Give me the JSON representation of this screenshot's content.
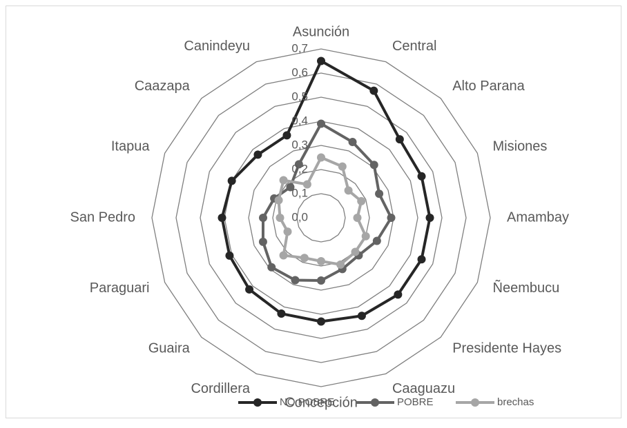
{
  "chart_data": {
    "type": "radar",
    "categories": [
      "Asunción",
      "Central",
      "Alto Parana",
      "Misiones",
      "Amambay",
      "Ñeembucu",
      "Presidente Hayes",
      "Caaguazu",
      "Concepción",
      "Cordillera",
      "Guaira",
      "Paraguari",
      "San Pedro",
      "Itapua",
      "Caazapa",
      "Canindeyu"
    ],
    "series": [
      {
        "name": "NO POBRE",
        "color": "#262626",
        "values": [
          0.65,
          0.57,
          0.46,
          0.45,
          0.45,
          0.45,
          0.45,
          0.44,
          0.43,
          0.43,
          0.42,
          0.41,
          0.41,
          0.4,
          0.37,
          0.37
        ]
      },
      {
        "name": "POBRE",
        "color": "#636363",
        "values": [
          0.39,
          0.34,
          0.31,
          0.26,
          0.29,
          0.25,
          0.22,
          0.23,
          0.26,
          0.28,
          0.29,
          0.26,
          0.24,
          0.21,
          0.18,
          0.24
        ]
      },
      {
        "name": "brechas",
        "color": "#a6a6a6",
        "values": [
          0.25,
          0.23,
          0.16,
          0.18,
          0.15,
          0.2,
          0.2,
          0.21,
          0.18,
          0.18,
          0.22,
          0.15,
          0.17,
          0.19,
          0.22,
          0.15
        ]
      }
    ],
    "ylim": [
      0,
      0.7
    ],
    "yticks": [
      {
        "value": 0,
        "label": "0,0"
      },
      {
        "value": 0.1,
        "label": "0,1"
      },
      {
        "value": 0.2,
        "label": "0,2"
      },
      {
        "value": 0.3,
        "label": "0,3"
      },
      {
        "value": 0.4,
        "label": "0,4"
      },
      {
        "value": 0.5,
        "label": "0,5"
      },
      {
        "value": 0.6,
        "label": "0,6"
      },
      {
        "value": 0.7,
        "label": "0,7"
      }
    ],
    "grid": true,
    "legend": "bottom"
  }
}
